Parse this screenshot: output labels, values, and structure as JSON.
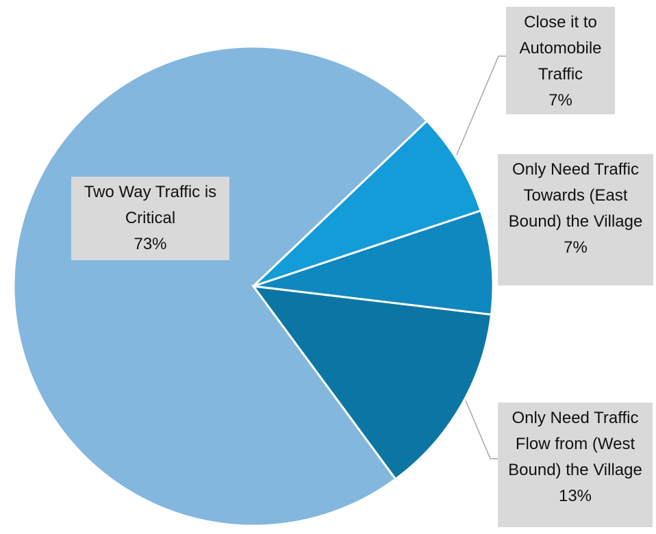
{
  "chart_data": {
    "type": "pie",
    "categories": [
      "Close it to Automobile Traffic",
      "Only Need Traffic Towards (East Bound) the Village",
      "Only Need Traffic Flow from (West Bound) the Village",
      "Two Way Traffic is Critical"
    ],
    "values": [
      7,
      7,
      13,
      73
    ],
    "value_labels": [
      "7%",
      "7%",
      "13%",
      "73%"
    ],
    "colors": [
      "#139cd8",
      "#0f88bf",
      "#0b76a3",
      "#83b7de"
    ]
  }
}
